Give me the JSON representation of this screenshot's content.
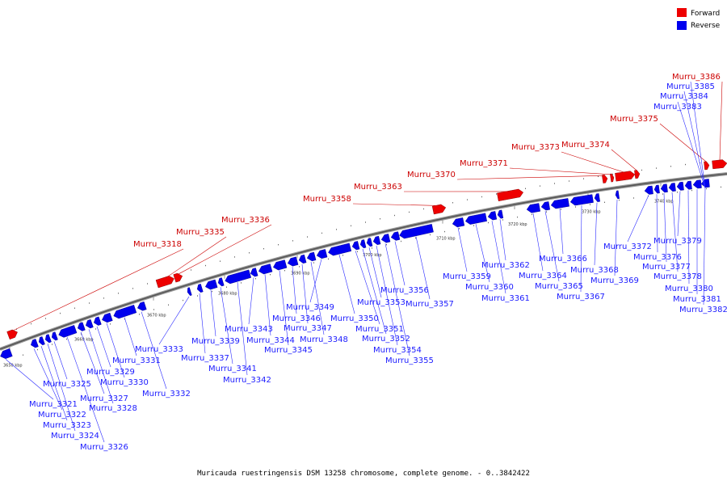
{
  "legend": {
    "forward_label": "Forward",
    "reverse_label": "Reverse",
    "forward_color": "#ee0000",
    "reverse_color": "#0000ee"
  },
  "caption": "Muricauda ruestringensis DSM 13258 chromosome, complete genome. - 0..3842422",
  "ticks": [
    "3650 kbp",
    "3660 kbp",
    "3670 kbp",
    "3680 kbp",
    "3690 kbp",
    "3700 kbp",
    "3710 kbp",
    "3720 kbp",
    "3730 kbp",
    "3740 kbp"
  ],
  "forward_genes": [
    {
      "name": "Murru_3318"
    },
    {
      "name": "Murru_3335"
    },
    {
      "name": "Murru_3336"
    },
    {
      "name": "Murru_3358"
    },
    {
      "name": "Murru_3363"
    },
    {
      "name": "Murru_3370"
    },
    {
      "name": "Murru_3371"
    },
    {
      "name": "Murru_3373"
    },
    {
      "name": "Murru_3374"
    },
    {
      "name": "Murru_3375"
    },
    {
      "name": "Murru_3386"
    }
  ],
  "reverse_genes": [
    {
      "name": "Murru_3321"
    },
    {
      "name": "Murru_3322"
    },
    {
      "name": "Murru_3323"
    },
    {
      "name": "Murru_3324"
    },
    {
      "name": "Murru_3325"
    },
    {
      "name": "Murru_3326"
    },
    {
      "name": "Murru_3327"
    },
    {
      "name": "Murru_3328"
    },
    {
      "name": "Murru_3329"
    },
    {
      "name": "Murru_3330"
    },
    {
      "name": "Murru_3331"
    },
    {
      "name": "Murru_3332"
    },
    {
      "name": "Murru_3333"
    },
    {
      "name": "Murru_3337"
    },
    {
      "name": "Murru_3339"
    },
    {
      "name": "Murru_3341"
    },
    {
      "name": "Murru_3342"
    },
    {
      "name": "Murru_3343"
    },
    {
      "name": "Murru_3344"
    },
    {
      "name": "Murru_3345"
    },
    {
      "name": "Murru_3346"
    },
    {
      "name": "Murru_3347"
    },
    {
      "name": "Murru_3348"
    },
    {
      "name": "Murru_3349"
    },
    {
      "name": "Murru_3350"
    },
    {
      "name": "Murru_3351"
    },
    {
      "name": "Murru_3352"
    },
    {
      "name": "Murru_3353"
    },
    {
      "name": "Murru_3354"
    },
    {
      "name": "Murru_3355"
    },
    {
      "name": "Murru_3356"
    },
    {
      "name": "Murru_3357"
    },
    {
      "name": "Murru_3359"
    },
    {
      "name": "Murru_3360"
    },
    {
      "name": "Murru_3361"
    },
    {
      "name": "Murru_3362"
    },
    {
      "name": "Murru_3364"
    },
    {
      "name": "Murru_3365"
    },
    {
      "name": "Murru_3366"
    },
    {
      "name": "Murru_3367"
    },
    {
      "name": "Murru_3368"
    },
    {
      "name": "Murru_3369"
    },
    {
      "name": "Murru_3372"
    },
    {
      "name": "Murru_3376"
    },
    {
      "name": "Murru_3377"
    },
    {
      "name": "Murru_3378"
    },
    {
      "name": "Murru_3379"
    },
    {
      "name": "Murru_3380"
    },
    {
      "name": "Murru_3381"
    },
    {
      "name": "Murru_3382"
    },
    {
      "name": "Murru_3383"
    },
    {
      "name": "Murru_3384"
    },
    {
      "name": "Murru_3385"
    }
  ]
}
